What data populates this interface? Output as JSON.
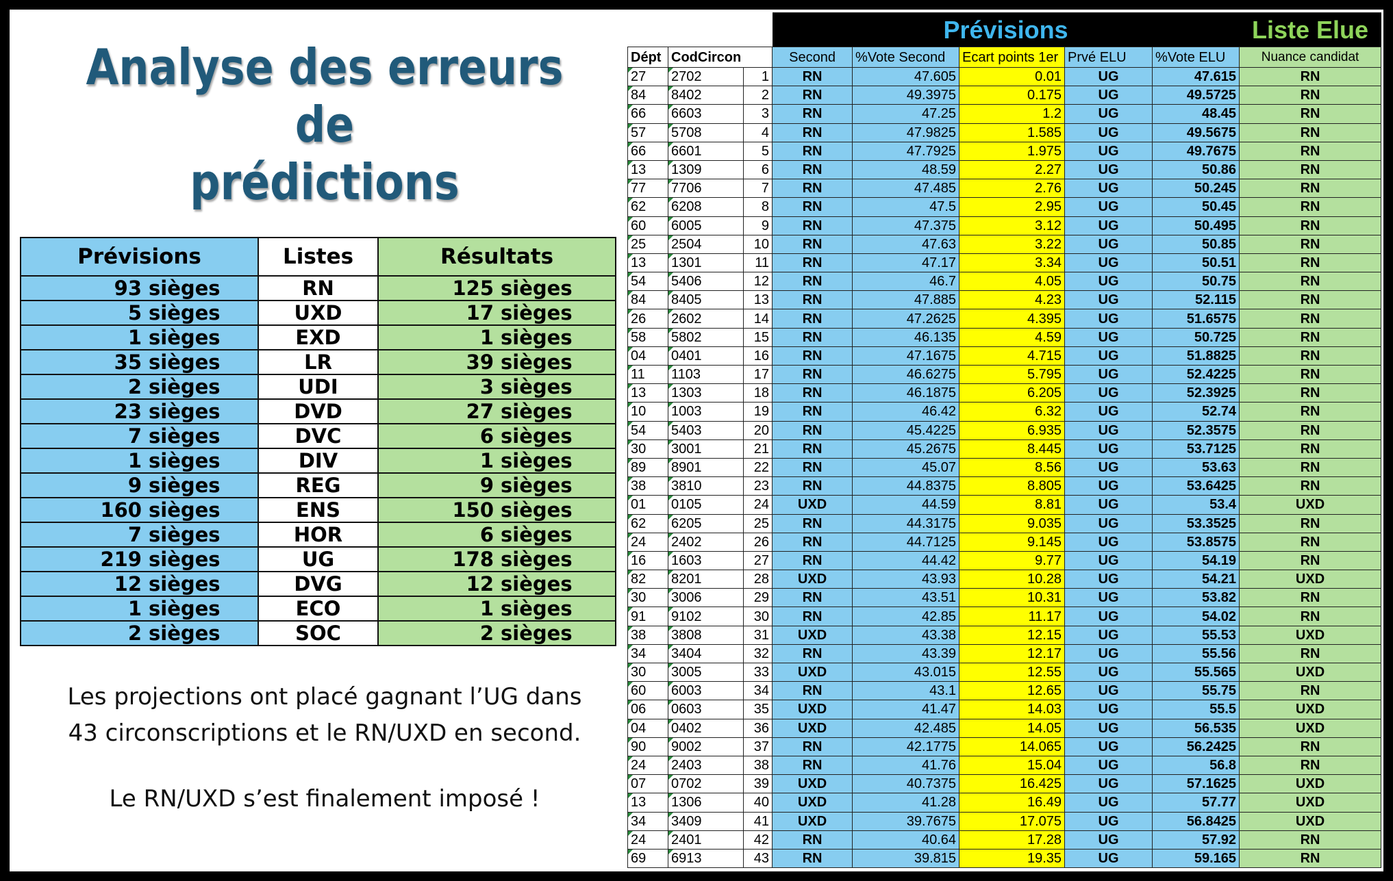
{
  "title": {
    "line1": "Analyse des erreurs de",
    "line2": "prédictions"
  },
  "summary": {
    "headers": {
      "previsions": "Prévisions",
      "listes": "Listes",
      "resultats": "Résultats"
    },
    "unit": "sièges",
    "rows": [
      {
        "prev": "93",
        "liste": "RN",
        "res": "125"
      },
      {
        "prev": "5",
        "liste": "UXD",
        "res": "17"
      },
      {
        "prev": "1",
        "liste": "EXD",
        "res": "1"
      },
      {
        "prev": "35",
        "liste": "LR",
        "res": "39"
      },
      {
        "prev": "2",
        "liste": "UDI",
        "res": "3"
      },
      {
        "prev": "23",
        "liste": "DVD",
        "res": "27"
      },
      {
        "prev": "7",
        "liste": "DVC",
        "res": "6"
      },
      {
        "prev": "1",
        "liste": "DIV",
        "res": "1"
      },
      {
        "prev": "9",
        "liste": "REG",
        "res": "9"
      },
      {
        "prev": "160",
        "liste": "ENS",
        "res": "150"
      },
      {
        "prev": "7",
        "liste": "HOR",
        "res": "6"
      },
      {
        "prev": "219",
        "liste": "UG",
        "res": "178"
      },
      {
        "prev": "12",
        "liste": "DVG",
        "res": "12"
      },
      {
        "prev": "1",
        "liste": "ECO",
        "res": "1"
      },
      {
        "prev": "2",
        "liste": "SOC",
        "res": "2"
      }
    ]
  },
  "notes": {
    "line1": "Les projections ont placé gagnant l’UG dans",
    "line2": "43 circonscriptions et le RN/UXD en second.",
    "line3": "Le RN/UXD s’est finalement imposé !"
  },
  "sheet": {
    "group_previsions": "Prévisions",
    "group_elue": "Liste Elue",
    "headers": {
      "dept": "Dépt",
      "cod": "CodCircon",
      "second": "Second",
      "vote_second": "%Vote Second",
      "ecart": "Ecart points 1er",
      "prve_elu": "Prvé ELU",
      "vote_elu": "%Vote ELU",
      "nuance": "Nuance candidat"
    },
    "rows": [
      [
        "27",
        "2702",
        "1",
        "RN",
        "47.605",
        "0.01",
        "UG",
        "47.615",
        "RN"
      ],
      [
        "84",
        "8402",
        "2",
        "RN",
        "49.3975",
        "0.175",
        "UG",
        "49.5725",
        "RN"
      ],
      [
        "66",
        "6603",
        "3",
        "RN",
        "47.25",
        "1.2",
        "UG",
        "48.45",
        "RN"
      ],
      [
        "57",
        "5708",
        "4",
        "RN",
        "47.9825",
        "1.585",
        "UG",
        "49.5675",
        "RN"
      ],
      [
        "66",
        "6601",
        "5",
        "RN",
        "47.7925",
        "1.975",
        "UG",
        "49.7675",
        "RN"
      ],
      [
        "13",
        "1309",
        "6",
        "RN",
        "48.59",
        "2.27",
        "UG",
        "50.86",
        "RN"
      ],
      [
        "77",
        "7706",
        "7",
        "RN",
        "47.485",
        "2.76",
        "UG",
        "50.245",
        "RN"
      ],
      [
        "62",
        "6208",
        "8",
        "RN",
        "47.5",
        "2.95",
        "UG",
        "50.45",
        "RN"
      ],
      [
        "60",
        "6005",
        "9",
        "RN",
        "47.375",
        "3.12",
        "UG",
        "50.495",
        "RN"
      ],
      [
        "25",
        "2504",
        "10",
        "RN",
        "47.63",
        "3.22",
        "UG",
        "50.85",
        "RN"
      ],
      [
        "13",
        "1301",
        "11",
        "RN",
        "47.17",
        "3.34",
        "UG",
        "50.51",
        "RN"
      ],
      [
        "54",
        "5406",
        "12",
        "RN",
        "46.7",
        "4.05",
        "UG",
        "50.75",
        "RN"
      ],
      [
        "84",
        "8405",
        "13",
        "RN",
        "47.885",
        "4.23",
        "UG",
        "52.115",
        "RN"
      ],
      [
        "26",
        "2602",
        "14",
        "RN",
        "47.2625",
        "4.395",
        "UG",
        "51.6575",
        "RN"
      ],
      [
        "58",
        "5802",
        "15",
        "RN",
        "46.135",
        "4.59",
        "UG",
        "50.725",
        "RN"
      ],
      [
        "04",
        "0401",
        "16",
        "RN",
        "47.1675",
        "4.715",
        "UG",
        "51.8825",
        "RN"
      ],
      [
        "11",
        "1103",
        "17",
        "RN",
        "46.6275",
        "5.795",
        "UG",
        "52.4225",
        "RN"
      ],
      [
        "13",
        "1303",
        "18",
        "RN",
        "46.1875",
        "6.205",
        "UG",
        "52.3925",
        "RN"
      ],
      [
        "10",
        "1003",
        "19",
        "RN",
        "46.42",
        "6.32",
        "UG",
        "52.74",
        "RN"
      ],
      [
        "54",
        "5403",
        "20",
        "RN",
        "45.4225",
        "6.935",
        "UG",
        "52.3575",
        "RN"
      ],
      [
        "30",
        "3001",
        "21",
        "RN",
        "45.2675",
        "8.445",
        "UG",
        "53.7125",
        "RN"
      ],
      [
        "89",
        "8901",
        "22",
        "RN",
        "45.07",
        "8.56",
        "UG",
        "53.63",
        "RN"
      ],
      [
        "38",
        "3810",
        "23",
        "RN",
        "44.8375",
        "8.805",
        "UG",
        "53.6425",
        "RN"
      ],
      [
        "01",
        "0105",
        "24",
        "UXD",
        "44.59",
        "8.81",
        "UG",
        "53.4",
        "UXD"
      ],
      [
        "62",
        "6205",
        "25",
        "RN",
        "44.3175",
        "9.035",
        "UG",
        "53.3525",
        "RN"
      ],
      [
        "24",
        "2402",
        "26",
        "RN",
        "44.7125",
        "9.145",
        "UG",
        "53.8575",
        "RN"
      ],
      [
        "16",
        "1603",
        "27",
        "RN",
        "44.42",
        "9.77",
        "UG",
        "54.19",
        "RN"
      ],
      [
        "82",
        "8201",
        "28",
        "UXD",
        "43.93",
        "10.28",
        "UG",
        "54.21",
        "UXD"
      ],
      [
        "30",
        "3006",
        "29",
        "RN",
        "43.51",
        "10.31",
        "UG",
        "53.82",
        "RN"
      ],
      [
        "91",
        "9102",
        "30",
        "RN",
        "42.85",
        "11.17",
        "UG",
        "54.02",
        "RN"
      ],
      [
        "38",
        "3808",
        "31",
        "UXD",
        "43.38",
        "12.15",
        "UG",
        "55.53",
        "UXD"
      ],
      [
        "34",
        "3404",
        "32",
        "RN",
        "43.39",
        "12.17",
        "UG",
        "55.56",
        "RN"
      ],
      [
        "30",
        "3005",
        "33",
        "UXD",
        "43.015",
        "12.55",
        "UG",
        "55.565",
        "UXD"
      ],
      [
        "60",
        "6003",
        "34",
        "RN",
        "43.1",
        "12.65",
        "UG",
        "55.75",
        "RN"
      ],
      [
        "06",
        "0603",
        "35",
        "UXD",
        "41.47",
        "14.03",
        "UG",
        "55.5",
        "UXD"
      ],
      [
        "04",
        "0402",
        "36",
        "UXD",
        "42.485",
        "14.05",
        "UG",
        "56.535",
        "UXD"
      ],
      [
        "90",
        "9002",
        "37",
        "RN",
        "42.1775",
        "14.065",
        "UG",
        "56.2425",
        "RN"
      ],
      [
        "24",
        "2403",
        "38",
        "RN",
        "41.76",
        "15.04",
        "UG",
        "56.8",
        "RN"
      ],
      [
        "07",
        "0702",
        "39",
        "UXD",
        "40.7375",
        "16.425",
        "UG",
        "57.1625",
        "UXD"
      ],
      [
        "13",
        "1306",
        "40",
        "UXD",
        "41.28",
        "16.49",
        "UG",
        "57.77",
        "UXD"
      ],
      [
        "34",
        "3409",
        "41",
        "UXD",
        "39.7675",
        "17.075",
        "UG",
        "56.8425",
        "UXD"
      ],
      [
        "24",
        "2401",
        "42",
        "RN",
        "40.64",
        "17.28",
        "UG",
        "57.92",
        "RN"
      ],
      [
        "69",
        "6913",
        "43",
        "RN",
        "39.815",
        "19.35",
        "UG",
        "59.165",
        "RN"
      ]
    ]
  }
}
